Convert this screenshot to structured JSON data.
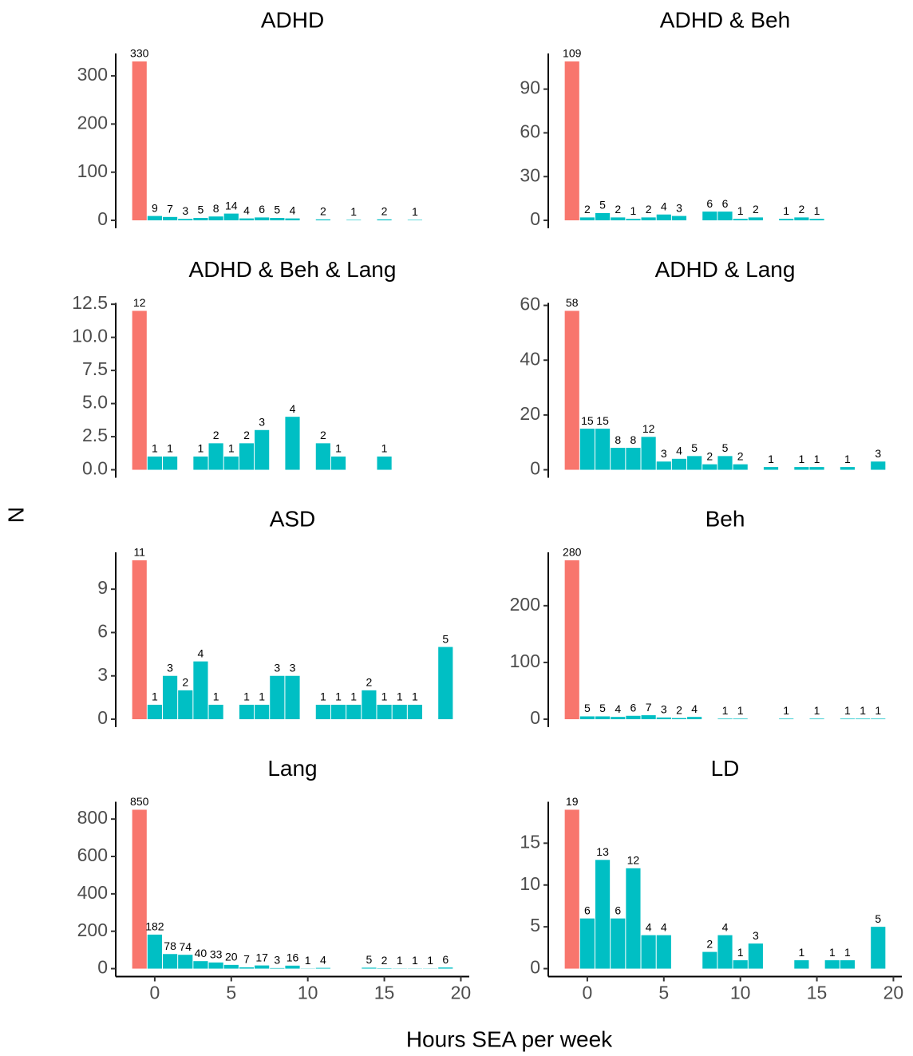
{
  "chart_data": {
    "type": "bar",
    "xlabel": "Hours SEA per week",
    "ylabel": "N",
    "xlim": [
      -2.55,
      20.55
    ],
    "xticks": [
      0,
      5,
      10,
      15,
      20
    ],
    "facets": [
      {
        "title": "ADHD",
        "ylim": [
          -16.5,
          346.5
        ],
        "yticks": [
          0,
          100,
          200,
          300
        ],
        "series": [
          {
            "color": "#F8766D",
            "x": [
              -1
            ],
            "values": [
              330
            ]
          },
          {
            "color": "#00BFC4",
            "x": [
              0,
              1,
              2,
              3,
              4,
              5,
              6,
              7,
              8,
              9,
              11,
              13,
              15,
              17
            ],
            "values": [
              9,
              7,
              3,
              5,
              8,
              14,
              4,
              6,
              5,
              4,
              2,
              1,
              2,
              1
            ]
          }
        ]
      },
      {
        "title": "ADHD & Beh",
        "ylim": [
          -5.45,
          114.45
        ],
        "yticks": [
          0,
          30,
          60,
          90
        ],
        "series": [
          {
            "color": "#F8766D",
            "x": [
              -1
            ],
            "values": [
              109
            ]
          },
          {
            "color": "#00BFC4",
            "x": [
              0,
              1,
              2,
              3,
              4,
              5,
              6,
              8,
              9,
              10,
              11,
              13,
              14,
              15
            ],
            "values": [
              2,
              5,
              2,
              1,
              2,
              4,
              3,
              6,
              6,
              1,
              2,
              1,
              2,
              1
            ]
          }
        ]
      },
      {
        "title": "ADHD & Beh & Lang",
        "ylim": [
          -0.6,
          12.6
        ],
        "yticks": [
          {
            "value": 0,
            "label": "0.0"
          },
          2.5,
          {
            "value": 5,
            "label": "5.0"
          },
          7.5,
          {
            "value": 10,
            "label": "10.0"
          },
          12.5
        ],
        "series": [
          {
            "color": "#F8766D",
            "x": [
              -1
            ],
            "values": [
              12
            ]
          },
          {
            "color": "#00BFC4",
            "x": [
              0,
              1,
              3,
              4,
              5,
              6,
              7,
              9,
              11,
              12,
              15
            ],
            "values": [
              1,
              1,
              1,
              2,
              1,
              2,
              3,
              4,
              2,
              1,
              1
            ]
          }
        ]
      },
      {
        "title": "ADHD & Lang",
        "ylim": [
          -2.9,
          60.9
        ],
        "yticks": [
          0,
          20,
          40,
          60
        ],
        "series": [
          {
            "color": "#F8766D",
            "x": [
              -1
            ],
            "values": [
              58
            ]
          },
          {
            "color": "#00BFC4",
            "x": [
              0,
              1,
              2,
              3,
              4,
              5,
              6,
              7,
              8,
              9,
              10,
              12,
              14,
              15,
              17,
              19
            ],
            "values": [
              15,
              15,
              8,
              8,
              12,
              3,
              4,
              5,
              2,
              5,
              2,
              1,
              1,
              1,
              1,
              3
            ]
          }
        ]
      },
      {
        "title": "ASD",
        "ylim": [
          -0.55,
          11.55
        ],
        "yticks": [
          0,
          3,
          6,
          9
        ],
        "series": [
          {
            "color": "#F8766D",
            "x": [
              -1
            ],
            "values": [
              11
            ]
          },
          {
            "color": "#00BFC4",
            "x": [
              0,
              1,
              2,
              3,
              4,
              6,
              7,
              8,
              9,
              11,
              12,
              13,
              14,
              15,
              16,
              17,
              19
            ],
            "values": [
              1,
              3,
              2,
              4,
              1,
              1,
              1,
              3,
              3,
              1,
              1,
              1,
              2,
              1,
              1,
              1,
              5
            ]
          }
        ]
      },
      {
        "title": "Beh",
        "ylim": [
          -14,
          294
        ],
        "yticks": [
          0,
          100,
          200
        ],
        "series": [
          {
            "color": "#F8766D",
            "x": [
              -1
            ],
            "values": [
              280
            ]
          },
          {
            "color": "#00BFC4",
            "x": [
              0,
              1,
              2,
              3,
              4,
              5,
              6,
              7,
              9,
              10,
              13,
              15,
              17,
              18,
              19
            ],
            "values": [
              5,
              5,
              4,
              6,
              7,
              3,
              2,
              4,
              1,
              1,
              1,
              1,
              1,
              1,
              1
            ]
          }
        ]
      },
      {
        "title": "Lang",
        "ylim": [
          -42.5,
          892.5
        ],
        "yticks": [
          0,
          200,
          400,
          600,
          800
        ],
        "series": [
          {
            "color": "#F8766D",
            "x": [
              -1
            ],
            "values": [
              850
            ]
          },
          {
            "color": "#00BFC4",
            "x": [
              0,
              1,
              2,
              3,
              4,
              5,
              6,
              7,
              8,
              9,
              10,
              11,
              14,
              15,
              16,
              17,
              18,
              19
            ],
            "values": [
              182,
              78,
              74,
              40,
              33,
              20,
              7,
              17,
              3,
              16,
              1,
              4,
              5,
              2,
              1,
              1,
              1,
              6
            ]
          }
        ]
      },
      {
        "title": "LD",
        "ylim": [
          -0.95,
          19.95
        ],
        "yticks": [
          0,
          5,
          10,
          15
        ],
        "series": [
          {
            "color": "#F8766D",
            "x": [
              -1
            ],
            "values": [
              19
            ]
          },
          {
            "color": "#00BFC4",
            "x": [
              0,
              1,
              2,
              3,
              4,
              5,
              8,
              9,
              10,
              11,
              14,
              16,
              17,
              19
            ],
            "values": [
              6,
              13,
              6,
              12,
              4,
              4,
              2,
              4,
              1,
              3,
              1,
              1,
              1,
              5
            ]
          }
        ]
      }
    ]
  }
}
